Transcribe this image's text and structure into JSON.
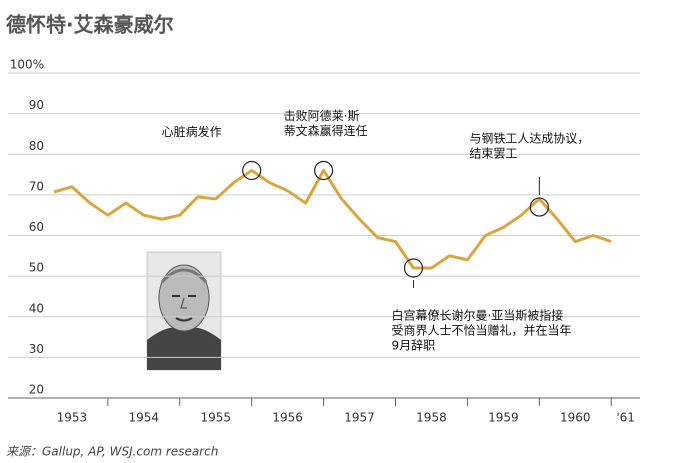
{
  "chart_data": {
    "type": "line",
    "title": "德怀特·艾森豪威尔",
    "source": "来源：Gallup, AP, WSJ.com research",
    "x": [
      1953.25,
      1953.5,
      1953.75,
      1954,
      1954.25,
      1954.5,
      1954.75,
      1955,
      1955.25,
      1955.5,
      1955.75,
      1956,
      1956.25,
      1956.5,
      1956.75,
      1957,
      1957.25,
      1957.5,
      1957.75,
      1958,
      1958.25,
      1958.5,
      1958.75,
      1959,
      1959.25,
      1959.5,
      1959.75,
      1960,
      1960.25,
      1960.5,
      1960.75,
      1961
    ],
    "series": [
      {
        "color": "#d9a540",
        "values": [
          70.7,
          72,
          68,
          65,
          68,
          65,
          64,
          65,
          69.5,
          69,
          73,
          76,
          73,
          71,
          68,
          76,
          69,
          64,
          59.5,
          58.5,
          52,
          52,
          55,
          54,
          60,
          62,
          65,
          69,
          64,
          58.5,
          60,
          58.5
        ]
      }
    ],
    "xlim": [
      1952.5,
      1961.4
    ],
    "xticks": [
      1954,
      1955,
      1956,
      1957,
      1958,
      1959,
      1960,
      1961
    ],
    "year_labels": [
      {
        "value": 1953.5,
        "label": "1953"
      },
      {
        "value": 1954.5,
        "label": "1954"
      },
      {
        "value": 1955.5,
        "label": "1955"
      },
      {
        "value": 1956.5,
        "label": "1956"
      },
      {
        "value": 1957.5,
        "label": "1957"
      },
      {
        "value": 1958.5,
        "label": "1958"
      },
      {
        "value": 1959.5,
        "label": "1959"
      },
      {
        "value": 1960.5,
        "label": "1960"
      },
      {
        "value": 1961.2,
        "label": "'61"
      }
    ],
    "ylim": [
      20,
      100
    ],
    "yticks": [
      20,
      30,
      40,
      50,
      60,
      70,
      80,
      {
        "value": 90,
        "label": "90"
      },
      {
        "value": 100,
        "label": "100%"
      }
    ],
    "grid": true,
    "annotations": [
      {
        "x": 1956,
        "y": 76,
        "lines": [
          "心脏病发作"
        ]
      },
      {
        "x": 1957,
        "y": 76,
        "lines": [
          "击败阿德莱·斯",
          "蒂文森赢得连任"
        ]
      },
      {
        "x": 1958.25,
        "y": 52,
        "lines": [
          "白宫幕僚长谢尔曼·亚当斯被指接",
          "受商界人士不恰当赠礼，并在当年",
          "9月辞职"
        ]
      },
      {
        "x": 1960,
        "y": 67,
        "lines": [
          "与钢铁工人达成协议，",
          "结束罢工"
        ]
      }
    ]
  }
}
